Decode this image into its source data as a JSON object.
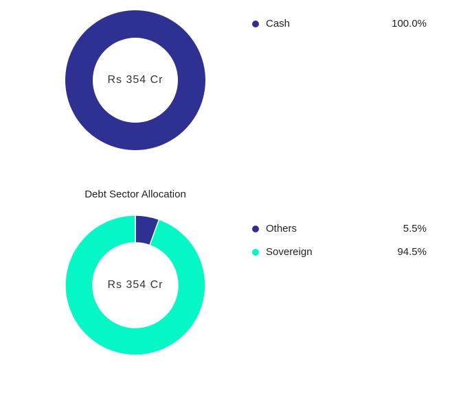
{
  "chart_data": [
    {
      "type": "pie",
      "center_label": "Rs 354 Cr",
      "categories": [
        "Cash"
      ],
      "values": [
        100
      ],
      "value_labels": [
        "100.0%"
      ],
      "colors": [
        "#2e3192"
      ]
    },
    {
      "type": "pie",
      "title": "Debt Sector Allocation",
      "center_label": "Rs 354 Cr",
      "categories": [
        "Others",
        "Sovereign"
      ],
      "values": [
        5.5,
        94.5
      ],
      "value_labels": [
        "5.5%",
        "94.5%"
      ],
      "colors": [
        "#2e3192",
        "#05f7c6"
      ]
    }
  ]
}
